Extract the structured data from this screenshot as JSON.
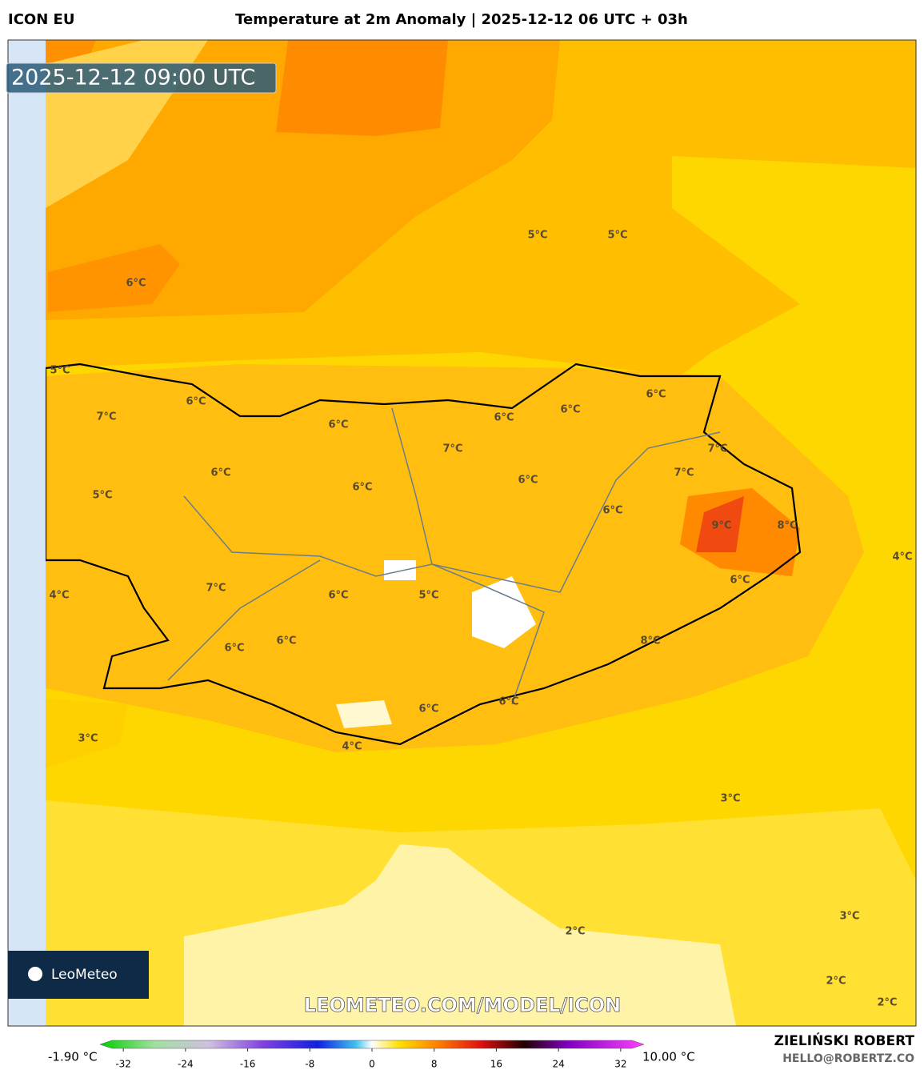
{
  "header": {
    "model": "ICON EU",
    "title": "Temperature at 2m Anomaly | 2025-12-12 06 UTC + 03h"
  },
  "timestamp": "2025-12-12 09:00 UTC",
  "map_labels": [
    "5°C",
    "5°C",
    "6°C",
    "5°C",
    "6°C",
    "7°C",
    "6°C",
    "6°C",
    "6°C",
    "6°C",
    "7°C",
    "7°C",
    "7°C",
    "6°C",
    "6°C",
    "6°C",
    "5°C",
    "6°C",
    "9°C",
    "8°C",
    "4°C",
    "6°C",
    "7°C",
    "6°C",
    "5°C",
    "4°C",
    "6°C",
    "6°C",
    "8°C",
    "6°C",
    "6°C",
    "3°C",
    "4°C",
    "3°C",
    "3°C",
    "2°C",
    "2°C",
    "2°C"
  ],
  "logo": "LeoMeteo",
  "watermark": "LEOMETEO.COM/MODEL/ICON",
  "colorbar": {
    "min_label": "-1.90 °C",
    "max_label": "10.00 °C",
    "xlim": [
      -35,
      35
    ],
    "ticks": [
      -32,
      -24,
      -16,
      -8,
      0,
      8,
      16,
      24,
      32
    ]
  },
  "credits": {
    "author": "ZIELIŃSKI ROBERT",
    "email": "HELLO@ROBERTZ.CO"
  }
}
